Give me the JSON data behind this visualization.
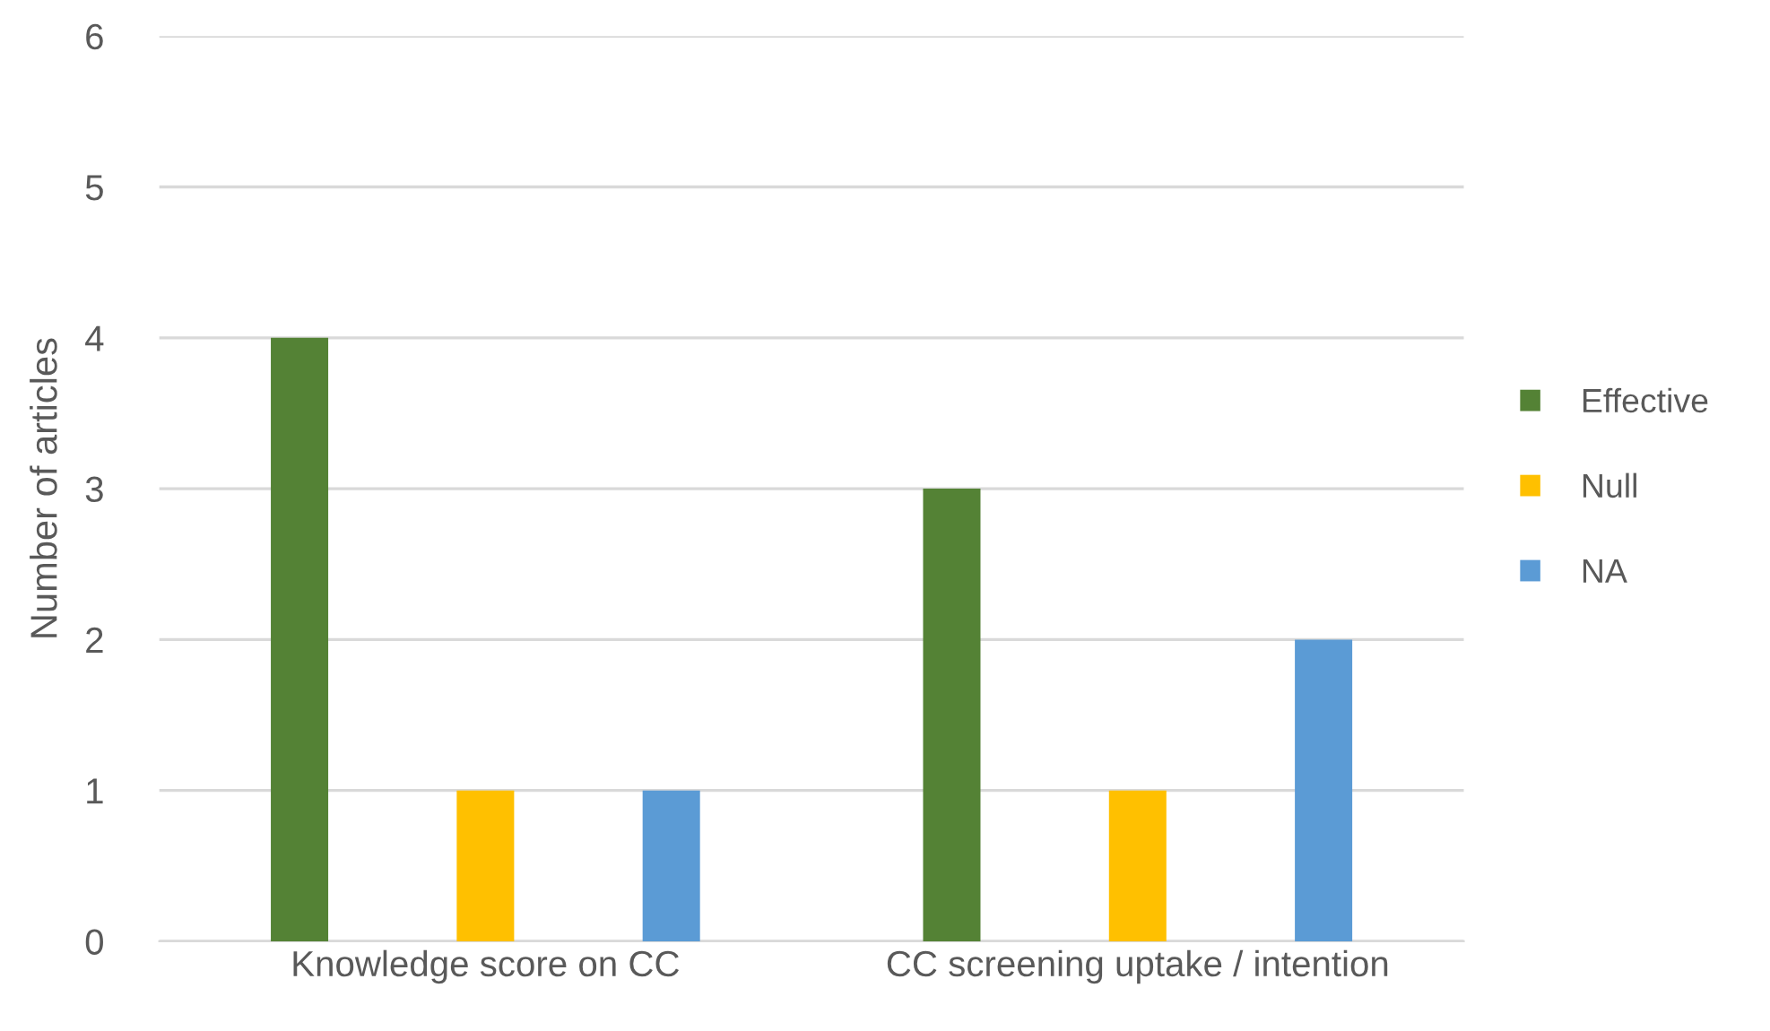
{
  "chart_data": {
    "type": "bar",
    "ylabel": "Number of articles",
    "categories": [
      "Knowledge score on CC",
      "CC screening uptake / intention"
    ],
    "series": [
      {
        "name": "Effective",
        "color": "#548235",
        "values": [
          4,
          3
        ]
      },
      {
        "name": "Null",
        "color": "#ffc000",
        "values": [
          1,
          1
        ]
      },
      {
        "name": "NA",
        "color": "#5b9bd5",
        "values": [
          1,
          2
        ]
      }
    ],
    "ylim": [
      0,
      6
    ],
    "yticks": [
      0,
      1,
      2,
      3,
      4,
      5,
      6
    ],
    "grid": "y",
    "legend": "right"
  }
}
